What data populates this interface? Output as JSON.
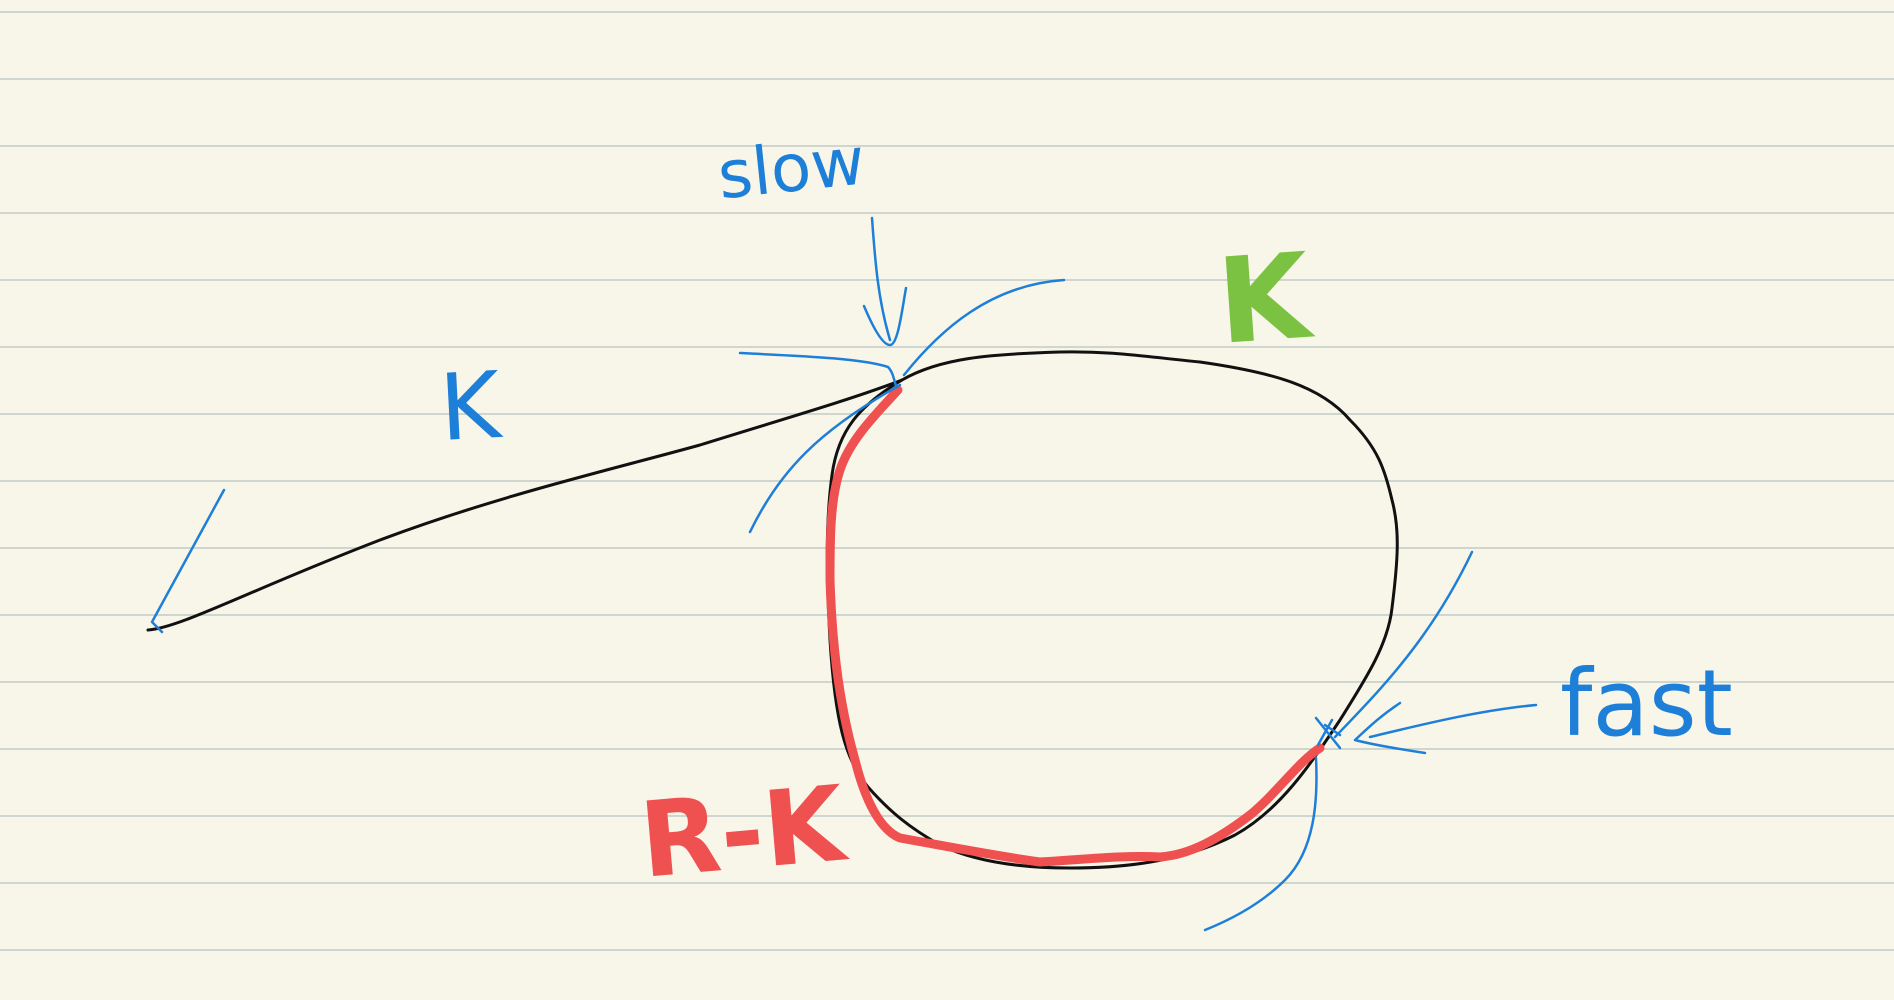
{
  "colors": {
    "paper": "#f8f6e9",
    "rule": "#cfd5cf",
    "ink": "#111111",
    "blue": "#1e7fd8",
    "red": "#ef5050",
    "green": "#7cc242"
  },
  "labels": {
    "slow": "slow",
    "fast": "fast",
    "k_tail": "K",
    "k_cycle": "K",
    "r_minus_k": "R-K"
  }
}
